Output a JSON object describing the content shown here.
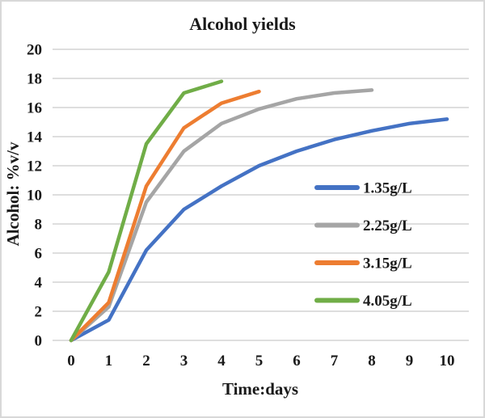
{
  "figure": {
    "background": "#ffffff",
    "border_color": "#d8d8d8"
  },
  "chart_data": {
    "type": "line",
    "title": "Alcohol yields",
    "xlabel": "Time:days",
    "ylabel": "Alcohol: %v/v",
    "xlim": [
      0,
      10
    ],
    "ylim": [
      0,
      20
    ],
    "x_ticks": [
      0,
      1,
      2,
      3,
      4,
      5,
      6,
      7,
      8,
      9,
      10
    ],
    "y_ticks": [
      0,
      2,
      4,
      6,
      8,
      10,
      12,
      14,
      16,
      18,
      20
    ],
    "grid": "horizontal",
    "gridline_color": "#D9D9D9",
    "text_color": "#1a1a1a",
    "legend_position": "inside-right",
    "legend_entries": [
      "1.35g/L",
      "2.25g/L",
      "3.15g/L",
      "4.05g/L"
    ],
    "series": [
      {
        "name": "1.35g/L",
        "color": "#4472C4",
        "x": [
          0,
          1,
          2,
          3,
          4,
          5,
          6,
          7,
          8,
          9,
          10
        ],
        "values": [
          0,
          1.4,
          6.2,
          9.0,
          10.6,
          12.0,
          13.0,
          13.8,
          14.4,
          14.9,
          15.2
        ]
      },
      {
        "name": "2.25g/L",
        "color": "#A5A5A5",
        "x": [
          0,
          1,
          2,
          3,
          4,
          5,
          6,
          7,
          8
        ],
        "values": [
          0,
          2.3,
          9.5,
          13.0,
          14.9,
          15.9,
          16.6,
          17.0,
          17.2
        ]
      },
      {
        "name": "3.15g/L",
        "color": "#ED7D31",
        "x": [
          0,
          1,
          2,
          3,
          4,
          5
        ],
        "values": [
          0,
          2.6,
          10.6,
          14.6,
          16.3,
          17.1
        ]
      },
      {
        "name": "4.05g/L",
        "color": "#70AD47",
        "x": [
          0,
          1,
          2,
          3,
          4
        ],
        "values": [
          0,
          4.7,
          13.5,
          17.0,
          17.8
        ]
      }
    ]
  }
}
